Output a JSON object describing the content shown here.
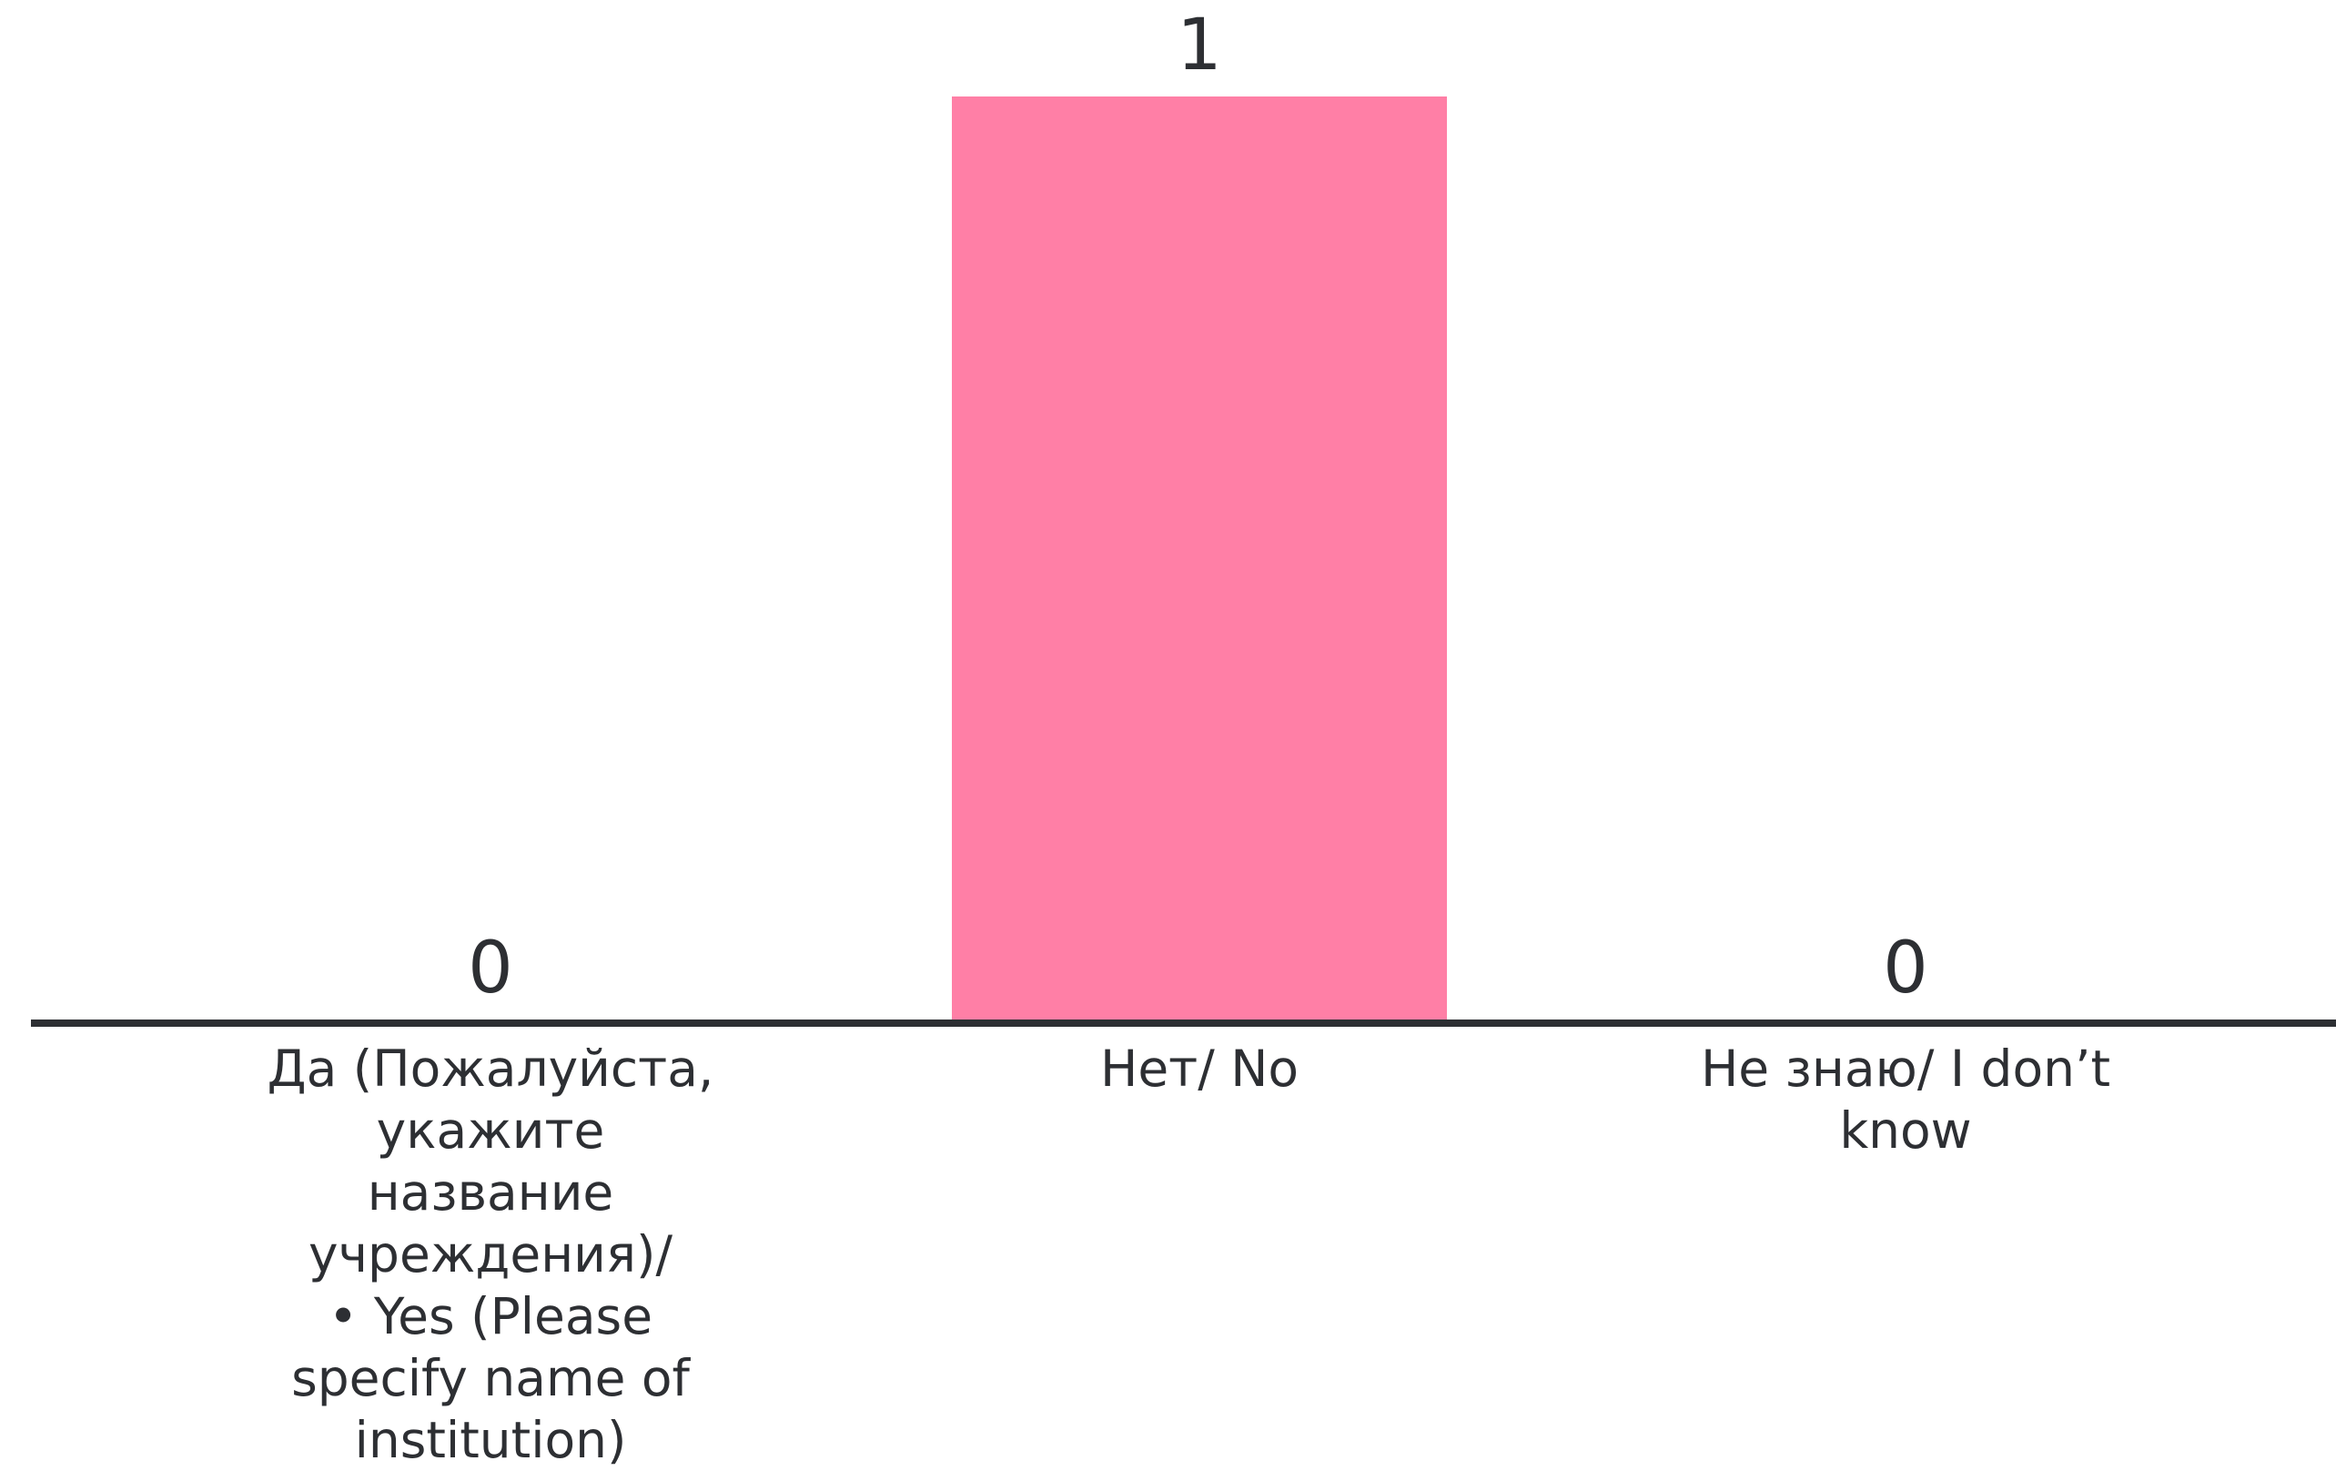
{
  "chart_data": {
    "type": "bar",
    "categories": [
      [
        "Да (Пожалуйста,",
        "укажите",
        "название",
        "учреждения)/",
        "• Yes (Please",
        "specify name of",
        "institution)"
      ],
      [
        "Нет/ No"
      ],
      [
        "Не знаю/ I don’t",
        "know"
      ]
    ],
    "values": [
      0,
      1,
      0
    ],
    "ylim": [
      0,
      1
    ],
    "bar_color": "#ff7fa6",
    "axis_color": "#2d2f33",
    "text_color": "#2d2f33",
    "grid": false,
    "legend": "none"
  }
}
